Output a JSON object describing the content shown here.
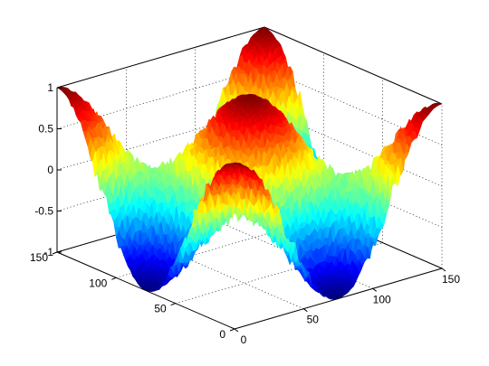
{
  "chart_data": {
    "type": "surface",
    "title": "",
    "xlabel": "",
    "ylabel": "",
    "zlabel": "",
    "x_range": [
      0,
      150
    ],
    "y_range": [
      0,
      150
    ],
    "z_range": [
      -1,
      1
    ],
    "x_ticks": [
      "0",
      "50",
      "100",
      "150"
    ],
    "y_ticks": [
      "0",
      "50",
      "100",
      "150"
    ],
    "z_ticks": [
      "-1",
      "-0.5",
      "0",
      "0.5",
      "1"
    ],
    "grid": true,
    "colormap": "jet",
    "function": "cos(2*pi*x/150) * cos(2*pi*y/150) with added noise",
    "peaks": [
      {
        "x": 75,
        "y": 75,
        "z": 1
      },
      {
        "x": 0,
        "y": 0,
        "z": 1
      }
    ],
    "troughs": [
      {
        "x": 75,
        "y": 0,
        "z": -1
      },
      {
        "x": 0,
        "y": 75,
        "z": -1
      }
    ],
    "noise_amplitude": 0.12
  }
}
